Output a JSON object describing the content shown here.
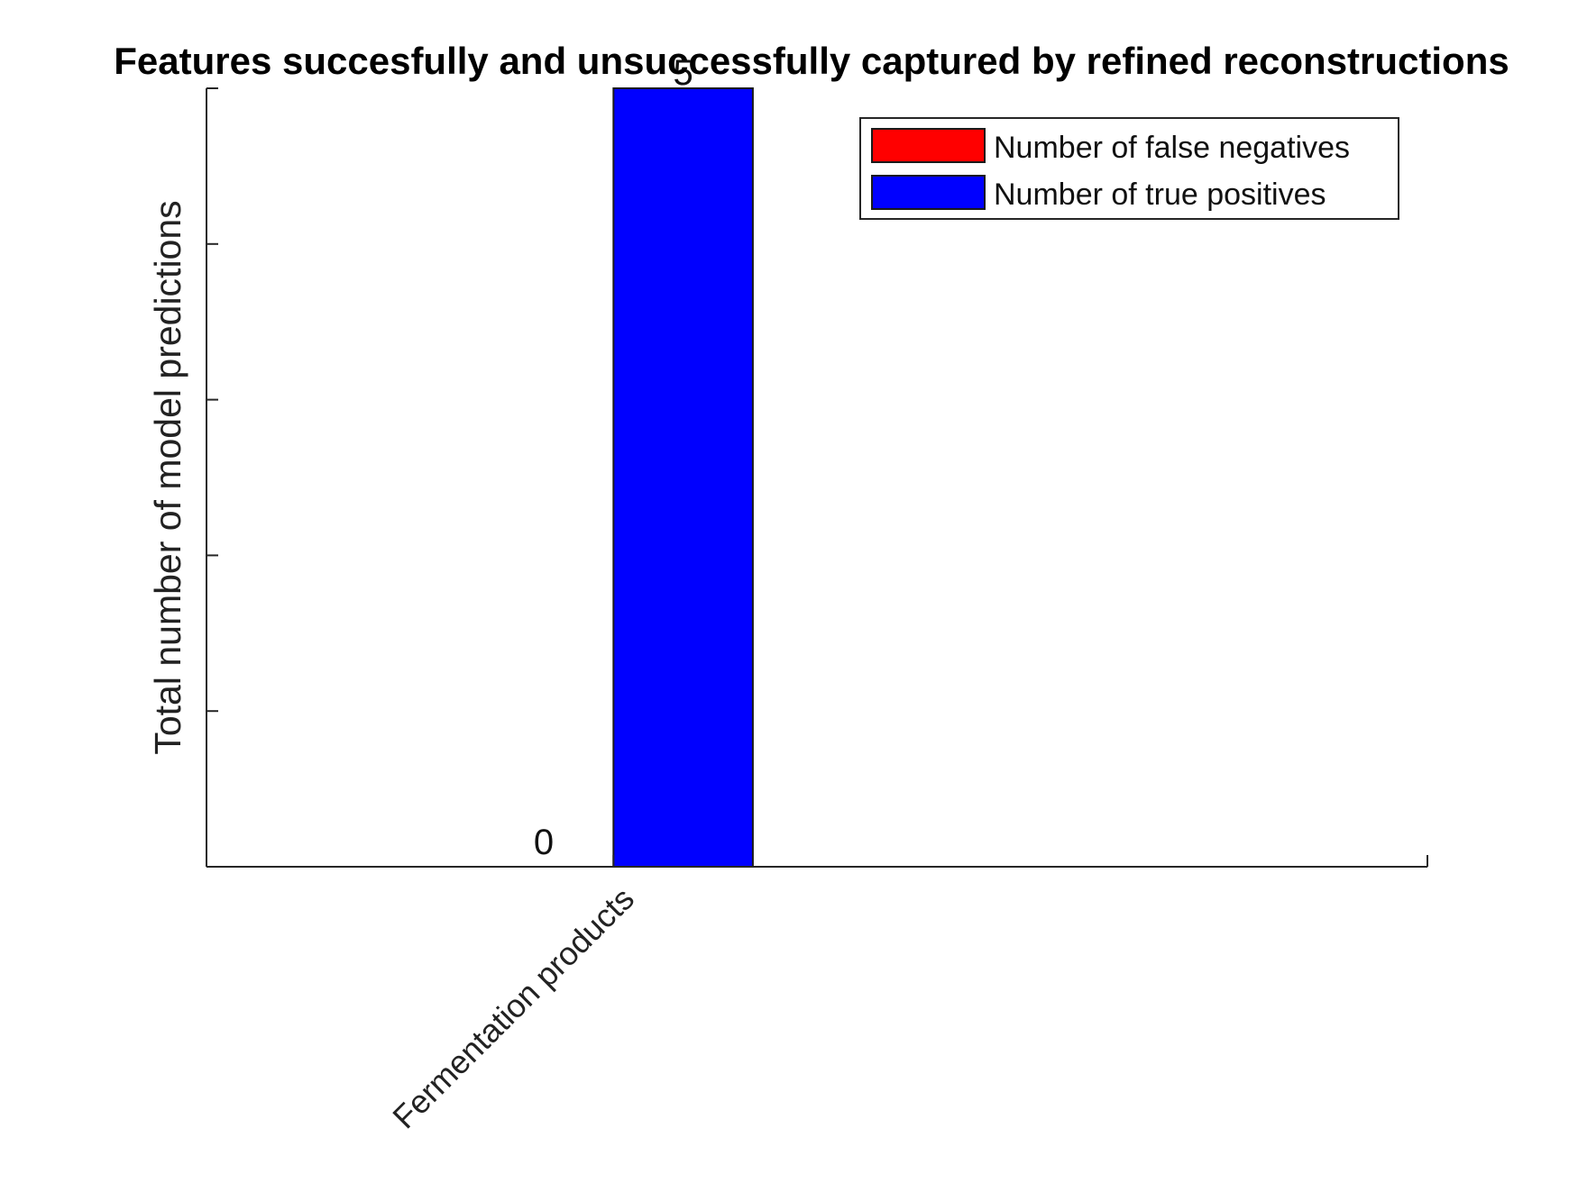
{
  "chart_data": {
    "type": "bar",
    "title": "Features succesfully and unsuccessfully captured by refined reconstructions",
    "xlabel": "",
    "ylabel": "Total number of model predictions",
    "categories": [
      "Fermentation products"
    ],
    "series": [
      {
        "name": "Number of false negatives",
        "values": [
          0
        ],
        "color": "#ff0000",
        "data_labels": [
          "0"
        ]
      },
      {
        "name": "Number of true positives",
        "values": [
          5
        ],
        "color": "#0000ff",
        "data_labels": [
          "5"
        ]
      }
    ],
    "ylim": [
      0,
      5
    ],
    "yticks": [
      0,
      1,
      2,
      3,
      4,
      5
    ],
    "ytick_labels_shown": false,
    "xlim": [
      0,
      3
    ],
    "xticks": [
      1,
      3
    ],
    "grid": false,
    "legend_position": "top-right"
  }
}
